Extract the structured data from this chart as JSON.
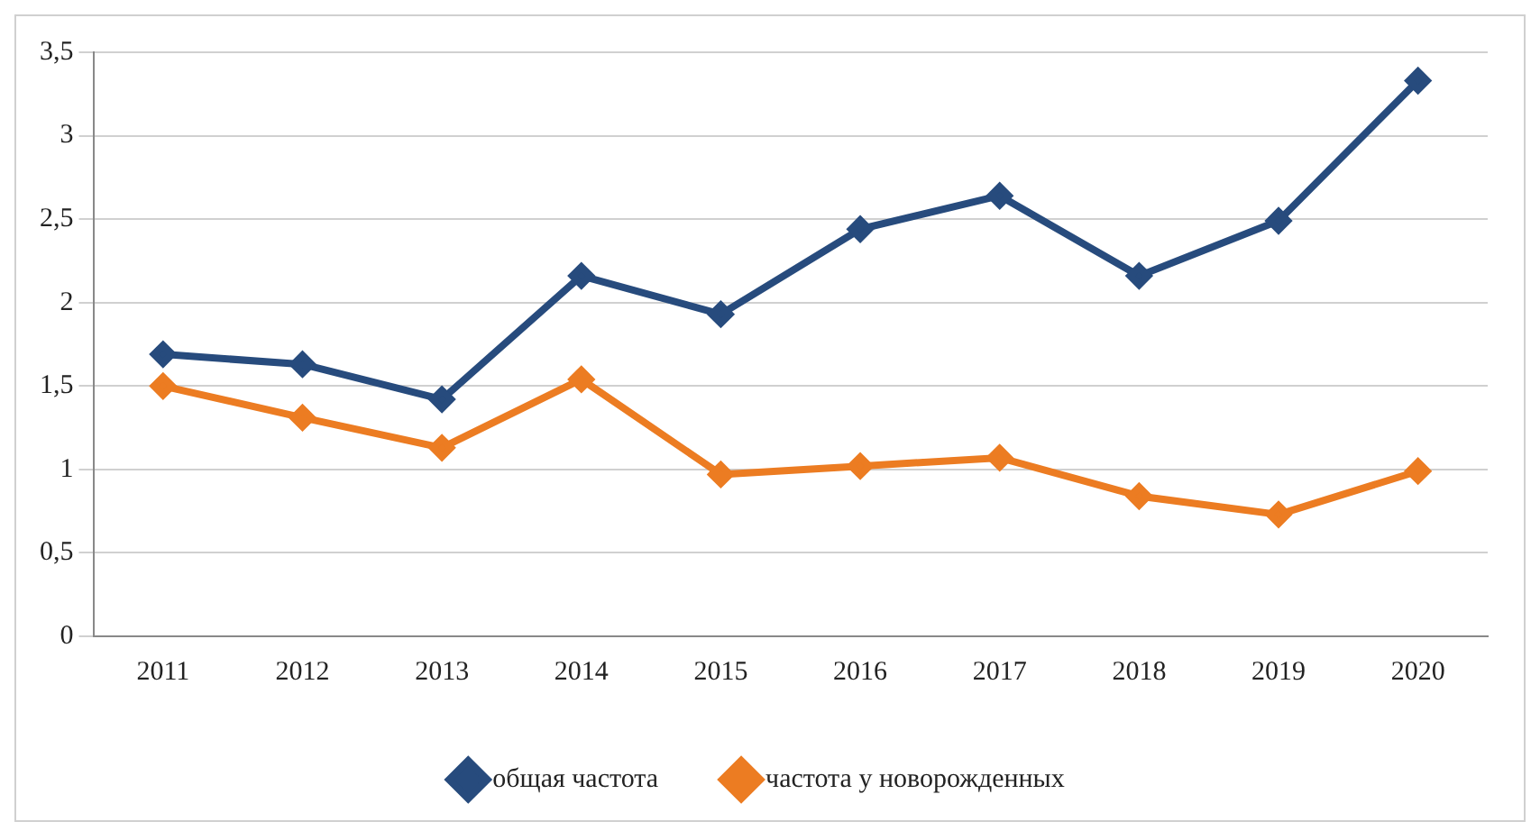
{
  "chart_data": {
    "type": "line",
    "categories": [
      "2011",
      "2012",
      "2013",
      "2014",
      "2015",
      "2016",
      "2017",
      "2018",
      "2019",
      "2020"
    ],
    "series": [
      {
        "name": "общая частота",
        "color": "#274b7d",
        "values": [
          1.69,
          1.63,
          1.42,
          2.16,
          1.93,
          2.44,
          2.64,
          2.16,
          2.49,
          3.33
        ]
      },
      {
        "name": "частота у новорожденных",
        "color": "#ec7c22",
        "values": [
          1.5,
          1.31,
          1.13,
          1.54,
          0.97,
          1.02,
          1.07,
          0.84,
          0.73,
          0.99
        ]
      }
    ],
    "ylim": [
      0,
      3.5
    ],
    "yticks": [
      0,
      {
        "value": 0.5,
        "label": "0,5"
      },
      1,
      {
        "value": 1.5,
        "label": "1,5"
      },
      2,
      {
        "value": 2.5,
        "label": "2,5"
      },
      3,
      {
        "value": 3.5,
        "label": "3,5"
      }
    ],
    "grid": "y",
    "legend": "bottom",
    "marker": "diamond",
    "line_style": "solid"
  }
}
